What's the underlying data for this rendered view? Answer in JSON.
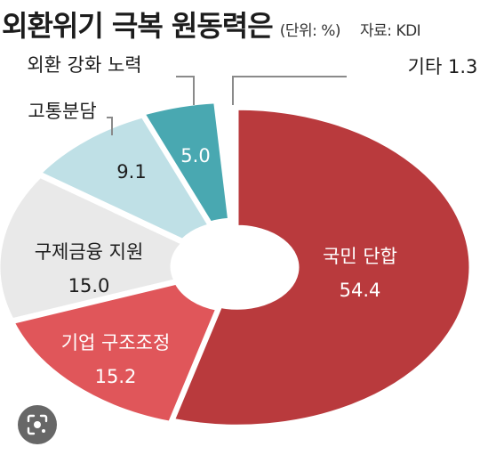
{
  "chart_data": {
    "type": "pie",
    "title": "외환위기 극복 원동력은",
    "unit": "(단위: %)",
    "source": "자료: KDI",
    "categories": [
      "국민 단합",
      "기업 구조조정",
      "구제금융 지원",
      "고통분담",
      "외환 강화 노력",
      "기타"
    ],
    "values": [
      54.4,
      15.2,
      15.0,
      9.1,
      5.0,
      1.3
    ],
    "value_labels": [
      "54.4",
      "15.2",
      "15.0",
      "9.1",
      "5.0",
      "1.3"
    ],
    "colors": [
      "#b93a3d",
      "#e0565a",
      "#e9e9e9",
      "#bfe0e6",
      "#49a8b1",
      "#ffffff"
    ],
    "style": "donut"
  },
  "lens_icon": "lens-icon"
}
